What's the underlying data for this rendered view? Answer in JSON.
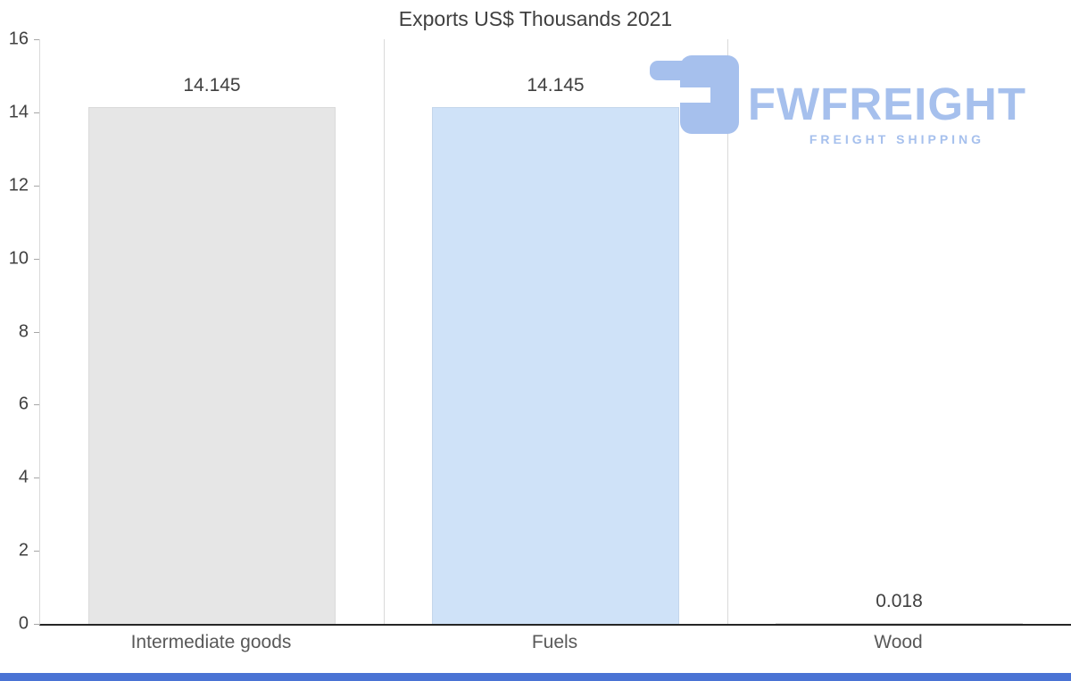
{
  "title": "Exports US$ Thousands 2021",
  "watermark": {
    "brand": "FWFREIGHT",
    "tagline": "FREIGHT SHIPPING"
  },
  "colors": {
    "gray_bar": "#e6e6e6",
    "accent_blue_bar": "#cfe2f8",
    "watermark_blue": "#a6c0ed",
    "footer_blue": "#4a73d4",
    "axis_line": "#262626",
    "grid_line": "#d9d9d9",
    "text_dark": "#404040",
    "text_gray": "#595959"
  },
  "chart_data": {
    "type": "bar",
    "title": "Exports US$ Thousands 2021",
    "categories": [
      "Intermediate goods",
      "Fuels",
      "Wood"
    ],
    "values": [
      14.145,
      14.145,
      0.018
    ],
    "value_labels": [
      "14.145",
      "14.145",
      "0.018"
    ],
    "xlabel": "",
    "ylabel": "",
    "ylim": [
      0,
      16
    ],
    "yticks": [
      0,
      2,
      4,
      6,
      8,
      10,
      12,
      14,
      16
    ],
    "grid": "vertical-category-separators",
    "legend": "none",
    "bar_colors": [
      "#e6e6e6",
      "#cfe2f8",
      "#e6e6e6"
    ]
  }
}
